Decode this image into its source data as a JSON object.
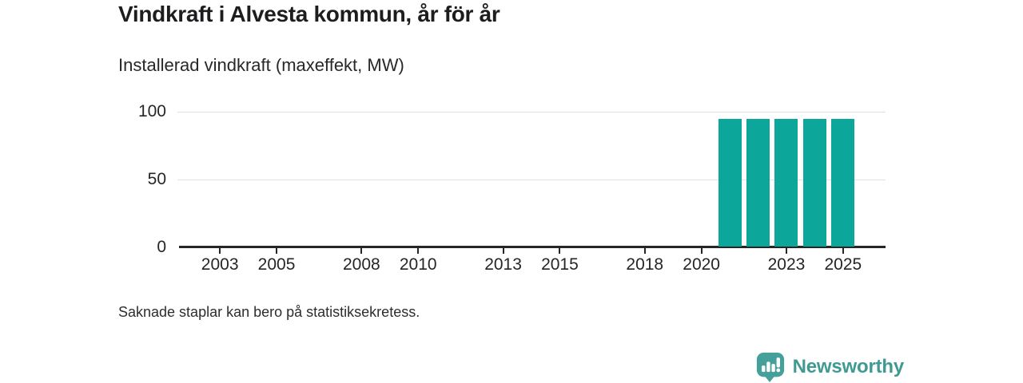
{
  "chart_data": {
    "type": "bar",
    "title": "Vindkraft i Alvesta kommun, år för år",
    "subtitle": "Installerad vindkraft (maxeffekt, MW)",
    "categories": [
      2002,
      2003,
      2004,
      2005,
      2006,
      2007,
      2008,
      2009,
      2010,
      2011,
      2012,
      2013,
      2014,
      2015,
      2016,
      2017,
      2018,
      2019,
      2020,
      2021,
      2022,
      2023,
      2024,
      2025
    ],
    "values": [
      null,
      null,
      null,
      null,
      null,
      null,
      null,
      null,
      null,
      null,
      null,
      null,
      null,
      null,
      null,
      null,
      null,
      null,
      null,
      95,
      95,
      95,
      95,
      95
    ],
    "xlabel": "",
    "ylabel": "",
    "ylim": [
      0,
      100
    ],
    "yticks": [
      0,
      50,
      100
    ],
    "xtick_labels": [
      2003,
      2005,
      2008,
      2010,
      2013,
      2015,
      2018,
      2020,
      2023,
      2025
    ],
    "grid": "horizontal",
    "legend": "none",
    "bar_color": "#0ca69b",
    "grid_color": "#e0e0e0",
    "axis_color": "#262626",
    "note": "Saknade staplar kan bero på statistiksekretess."
  },
  "branding": {
    "name": "Newsworthy",
    "logo_color": "#45a099",
    "icon": "bar-chart-speech-bubble-icon"
  }
}
